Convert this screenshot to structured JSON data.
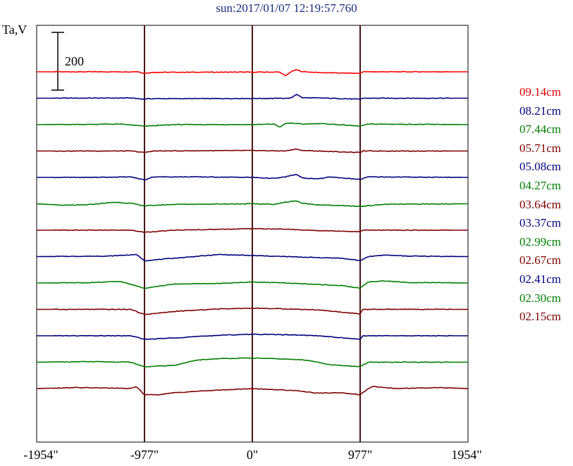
{
  "chart_data": {
    "type": "line",
    "title": "sun:2017/01/07 12:19:57.760",
    "ylabel": "Ta,V",
    "scale_bar_label": "200",
    "x_ticks": [
      "-1954\"",
      "-977\"",
      "0\"",
      "977\"",
      "1954\""
    ],
    "x_tick_values": [
      -1954,
      -977,
      0,
      977,
      1954
    ],
    "xlim": [
      -1954,
      1954
    ],
    "vertical_lines": [
      -977,
      0,
      977
    ],
    "series": [
      {
        "name": "09.14cm",
        "color": "#ff0000",
        "points": [
          [
            -1954,
            0
          ],
          [
            -1100,
            0
          ],
          [
            -1040,
            2
          ],
          [
            -977,
            -15
          ],
          [
            -900,
            -5
          ],
          [
            0,
            -3
          ],
          [
            250,
            -3
          ],
          [
            300,
            -40
          ],
          [
            350,
            0
          ],
          [
            400,
            20
          ],
          [
            450,
            2
          ],
          [
            600,
            -8
          ],
          [
            977,
            -15
          ],
          [
            1000,
            0
          ],
          [
            1954,
            0
          ]
        ]
      },
      {
        "name": "08.21cm",
        "color": "#00007f",
        "points": [
          [
            -1954,
            0
          ],
          [
            -1100,
            2
          ],
          [
            -977,
            -10
          ],
          [
            -950,
            -5
          ],
          [
            0,
            -3
          ],
          [
            350,
            0
          ],
          [
            400,
            40
          ],
          [
            450,
            5
          ],
          [
            700,
            0
          ],
          [
            977,
            -10
          ],
          [
            1000,
            0
          ],
          [
            1954,
            0
          ]
        ]
      },
      {
        "name": "07.44cm",
        "color": "#007f00",
        "points": [
          [
            -1954,
            0
          ],
          [
            -1500,
            2
          ],
          [
            -1200,
            5
          ],
          [
            -977,
            -15
          ],
          [
            -700,
            0
          ],
          [
            0,
            0
          ],
          [
            200,
            5
          ],
          [
            250,
            -25
          ],
          [
            300,
            10
          ],
          [
            350,
            15
          ],
          [
            450,
            5
          ],
          [
            600,
            10
          ],
          [
            700,
            5
          ],
          [
            977,
            -15
          ],
          [
            1050,
            5
          ],
          [
            1954,
            0
          ]
        ]
      },
      {
        "name": "05.71cm",
        "color": "#7f0000",
        "points": [
          [
            -1954,
            0
          ],
          [
            -1100,
            0
          ],
          [
            -977,
            -15
          ],
          [
            -900,
            0
          ],
          [
            0,
            5
          ],
          [
            300,
            0
          ],
          [
            400,
            20
          ],
          [
            450,
            5
          ],
          [
            977,
            -15
          ],
          [
            1000,
            0
          ],
          [
            1954,
            0
          ]
        ]
      },
      {
        "name": "05.08cm",
        "color": "#00007f",
        "points": [
          [
            -1954,
            0
          ],
          [
            -1500,
            0
          ],
          [
            -1100,
            5
          ],
          [
            -977,
            -25
          ],
          [
            -900,
            5
          ],
          [
            -500,
            5
          ],
          [
            0,
            0
          ],
          [
            200,
            -10
          ],
          [
            300,
            5
          ],
          [
            400,
            30
          ],
          [
            450,
            -5
          ],
          [
            600,
            -15
          ],
          [
            700,
            5
          ],
          [
            977,
            -20
          ],
          [
            1050,
            5
          ],
          [
            1954,
            0
          ]
        ]
      },
      {
        "name": "04.27cm",
        "color": "#007f00",
        "points": [
          [
            -1954,
            0
          ],
          [
            -1700,
            -15
          ],
          [
            -1500,
            -10
          ],
          [
            -1250,
            15
          ],
          [
            -1100,
            5
          ],
          [
            -977,
            -20
          ],
          [
            -700,
            -5
          ],
          [
            0,
            0
          ],
          [
            200,
            -5
          ],
          [
            300,
            15
          ],
          [
            400,
            30
          ],
          [
            450,
            5
          ],
          [
            600,
            -10
          ],
          [
            977,
            -25
          ],
          [
            1200,
            -5
          ],
          [
            1954,
            0
          ]
        ]
      },
      {
        "name": "03.64cm",
        "color": "#7f0000",
        "points": [
          [
            -1954,
            0
          ],
          [
            -1100,
            0
          ],
          [
            -977,
            -20
          ],
          [
            -700,
            0
          ],
          [
            0,
            15
          ],
          [
            300,
            10
          ],
          [
            500,
            0
          ],
          [
            977,
            -15
          ],
          [
            1000,
            0
          ],
          [
            1954,
            0
          ]
        ]
      },
      {
        "name": "03.37cm",
        "color": "#00007f",
        "points": [
          [
            -1954,
            0
          ],
          [
            -1300,
            5
          ],
          [
            -1050,
            20
          ],
          [
            -977,
            -40
          ],
          [
            -700,
            -15
          ],
          [
            -300,
            20
          ],
          [
            0,
            10
          ],
          [
            300,
            0
          ],
          [
            600,
            -10
          ],
          [
            800,
            -15
          ],
          [
            977,
            -40
          ],
          [
            1050,
            0
          ],
          [
            1200,
            15
          ],
          [
            1400,
            5
          ],
          [
            1954,
            0
          ]
        ]
      },
      {
        "name": "02.99cm",
        "color": "#007f00",
        "points": [
          [
            -1954,
            0
          ],
          [
            -1500,
            2
          ],
          [
            -1200,
            15
          ],
          [
            -977,
            -50
          ],
          [
            -700,
            -10
          ],
          [
            -300,
            -5
          ],
          [
            0,
            10
          ],
          [
            300,
            0
          ],
          [
            600,
            -15
          ],
          [
            800,
            -25
          ],
          [
            977,
            -50
          ],
          [
            1050,
            10
          ],
          [
            1200,
            20
          ],
          [
            1400,
            5
          ],
          [
            1954,
            0
          ]
        ]
      },
      {
        "name": "02.67cm",
        "color": "#7f0000",
        "points": [
          [
            -1954,
            0
          ],
          [
            -1100,
            0
          ],
          [
            -977,
            -50
          ],
          [
            -700,
            -20
          ],
          [
            -300,
            5
          ],
          [
            0,
            12
          ],
          [
            300,
            5
          ],
          [
            600,
            -5
          ],
          [
            977,
            -45
          ],
          [
            1000,
            0
          ],
          [
            1954,
            0
          ]
        ]
      },
      {
        "name": "02.41cm",
        "color": "#00007f",
        "points": [
          [
            -1954,
            0
          ],
          [
            -1100,
            0
          ],
          [
            -977,
            -35
          ],
          [
            -700,
            -20
          ],
          [
            -300,
            5
          ],
          [
            0,
            15
          ],
          [
            300,
            10
          ],
          [
            600,
            0
          ],
          [
            977,
            -35
          ],
          [
            1000,
            0
          ],
          [
            1954,
            0
          ]
        ]
      },
      {
        "name": "02.30cm",
        "color": "#007f00",
        "points": [
          [
            -1954,
            0
          ],
          [
            -1500,
            5
          ],
          [
            -1100,
            0
          ],
          [
            -977,
            -45
          ],
          [
            -700,
            -30
          ],
          [
            -500,
            20
          ],
          [
            -300,
            35
          ],
          [
            0,
            40
          ],
          [
            300,
            30
          ],
          [
            500,
            20
          ],
          [
            700,
            -25
          ],
          [
            977,
            -45
          ],
          [
            1050,
            0
          ],
          [
            1500,
            0
          ],
          [
            1954,
            0
          ]
        ]
      },
      {
        "name": "02.15cm",
        "color": "#7f0000",
        "points": [
          [
            -1954,
            0
          ],
          [
            -1600,
            10
          ],
          [
            -1300,
            5
          ],
          [
            -1100,
            0
          ],
          [
            -1050,
            20
          ],
          [
            -977,
            -60
          ],
          [
            -850,
            -60
          ],
          [
            -700,
            -40
          ],
          [
            -400,
            -20
          ],
          [
            0,
            0
          ],
          [
            400,
            -20
          ],
          [
            600,
            -45
          ],
          [
            800,
            -40
          ],
          [
            977,
            -60
          ],
          [
            1050,
            0
          ],
          [
            1100,
            20
          ],
          [
            1300,
            0
          ],
          [
            1700,
            10
          ],
          [
            1954,
            0
          ]
        ]
      }
    ]
  }
}
